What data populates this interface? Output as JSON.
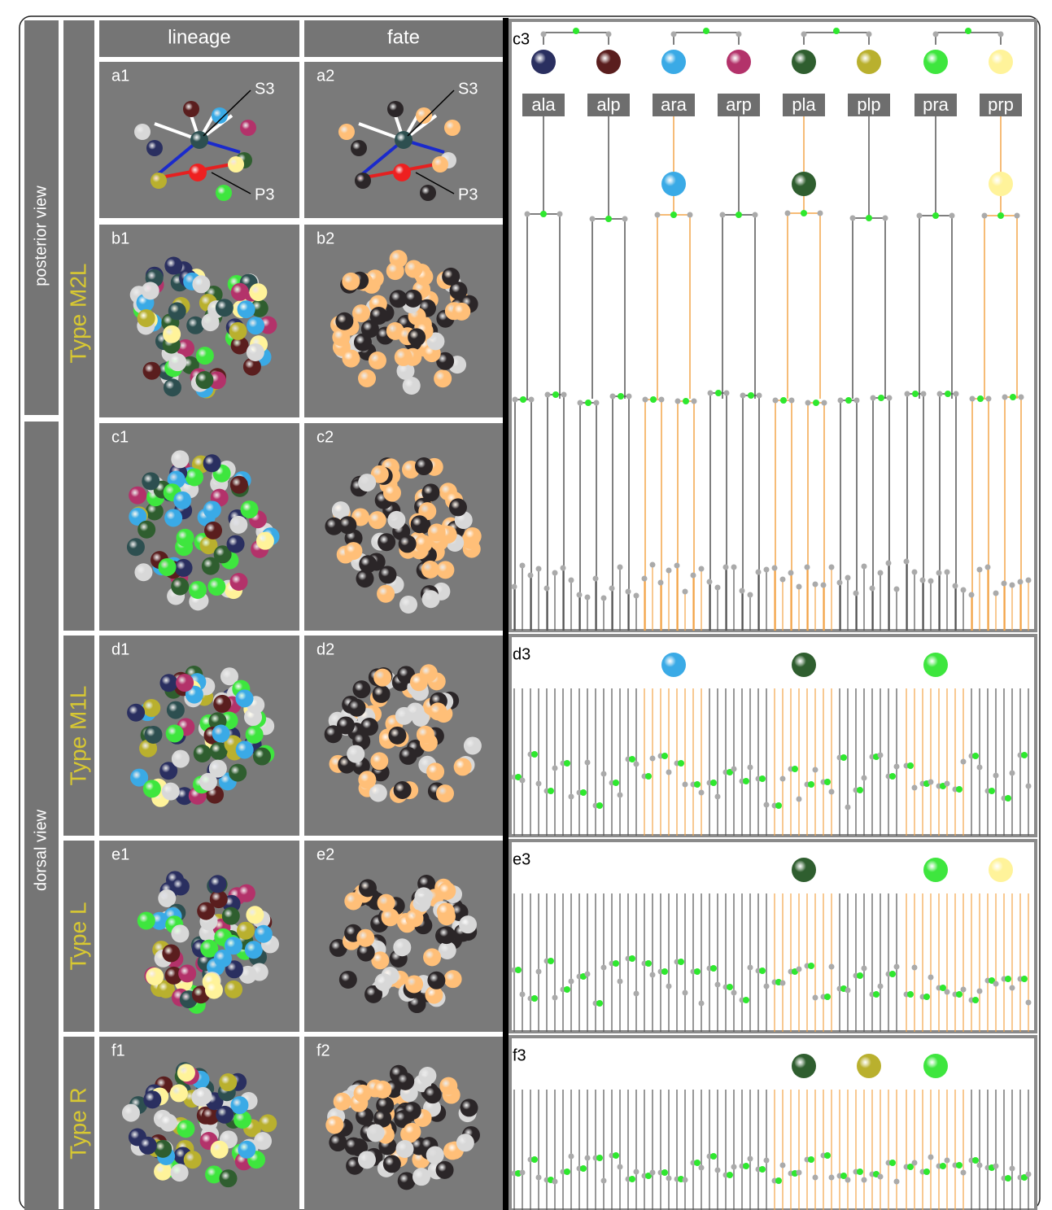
{
  "views": {
    "posterior": "posterior view",
    "dorsal": "dorsal view"
  },
  "types": [
    "Type M2L",
    "Type M1L",
    "Type L",
    "Type R"
  ],
  "columns": [
    "lineage",
    "fate"
  ],
  "panels": [
    [
      "a1",
      "a2"
    ],
    [
      "b1",
      "b2"
    ],
    [
      "c1",
      "c2"
    ],
    [
      "d1",
      "d2"
    ],
    [
      "e1",
      "e2"
    ],
    [
      "f1",
      "f2"
    ]
  ],
  "annotations": {
    "a1": [
      "S3",
      "P3"
    ],
    "a2": [
      "S3",
      "P3"
    ]
  },
  "trees": {
    "labels": [
      "c3",
      "d3",
      "e3",
      "f3"
    ],
    "cells": [
      "ala",
      "alp",
      "ara",
      "arp",
      "pla",
      "plp",
      "pra",
      "prp"
    ]
  }
}
